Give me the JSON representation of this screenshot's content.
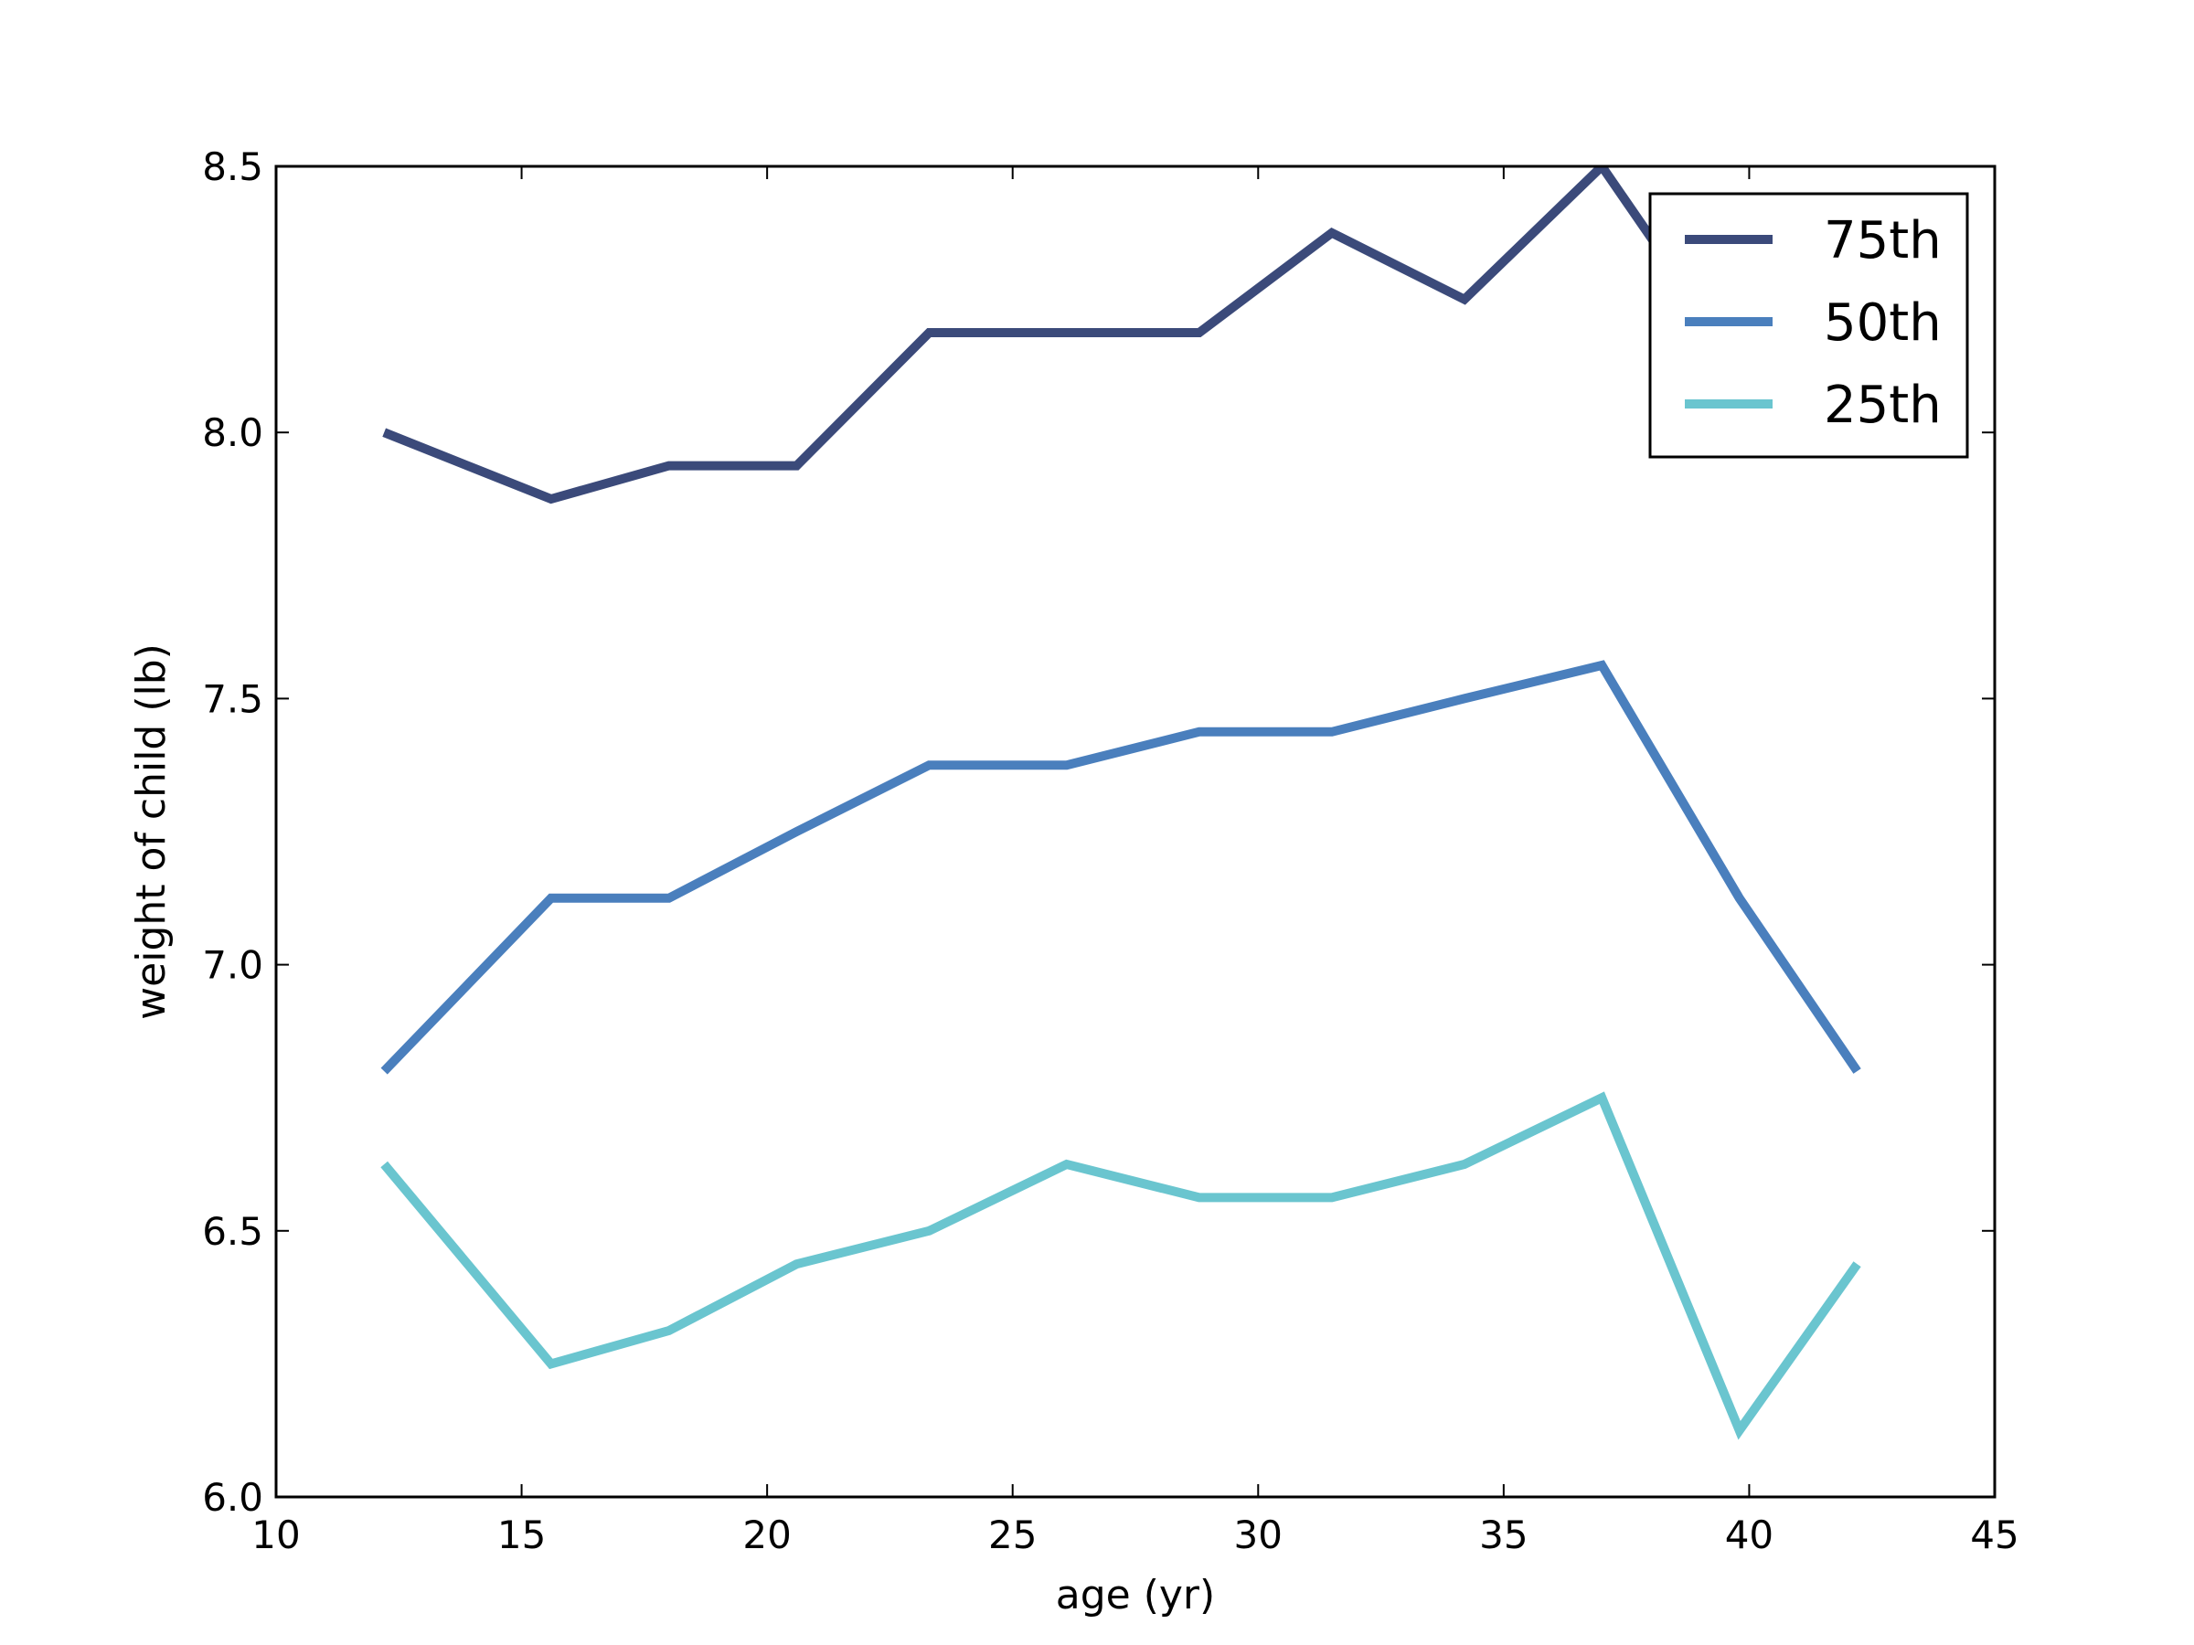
{
  "chart_data": {
    "type": "line",
    "xlabel": "age (yr)",
    "ylabel": "weight of child (lb)",
    "xlim": [
      10,
      45
    ],
    "ylim": [
      6.0,
      8.5
    ],
    "xticks": [
      10,
      15,
      20,
      25,
      30,
      35,
      40,
      45
    ],
    "yticks": [
      6.0,
      6.5,
      7.0,
      7.5,
      8.0,
      8.5
    ],
    "xtick_labels": [
      "10",
      "15",
      "20",
      "25",
      "30",
      "35",
      "40",
      "45"
    ],
    "ytick_labels": [
      "6.0",
      "6.5",
      "7.0",
      "7.5",
      "8.0",
      "8.5"
    ],
    "grid": false,
    "legend_position": "top-right",
    "x": [
      12.2,
      15.6,
      18.0,
      20.6,
      23.3,
      26.1,
      28.8,
      31.5,
      34.2,
      37.0,
      39.8,
      42.2
    ],
    "series": [
      {
        "name": "75th",
        "color": "#3b4a7a",
        "values": [
          8.0,
          7.875,
          7.9375,
          7.9375,
          8.1875,
          8.1875,
          8.1875,
          8.375,
          8.25,
          8.5,
          8.125,
          8.0
        ]
      },
      {
        "name": "50th",
        "color": "#4a7fbd",
        "values": [
          6.8,
          7.125,
          7.125,
          7.25,
          7.375,
          7.375,
          7.4375,
          7.4375,
          7.5,
          7.5625,
          7.125,
          6.8
        ]
      },
      {
        "name": "25th",
        "color": "#6ac5cf",
        "values": [
          6.625,
          6.25,
          6.3125,
          6.4375,
          6.5,
          6.625,
          6.5625,
          6.5625,
          6.625,
          6.75,
          6.125,
          6.4375
        ]
      }
    ]
  }
}
